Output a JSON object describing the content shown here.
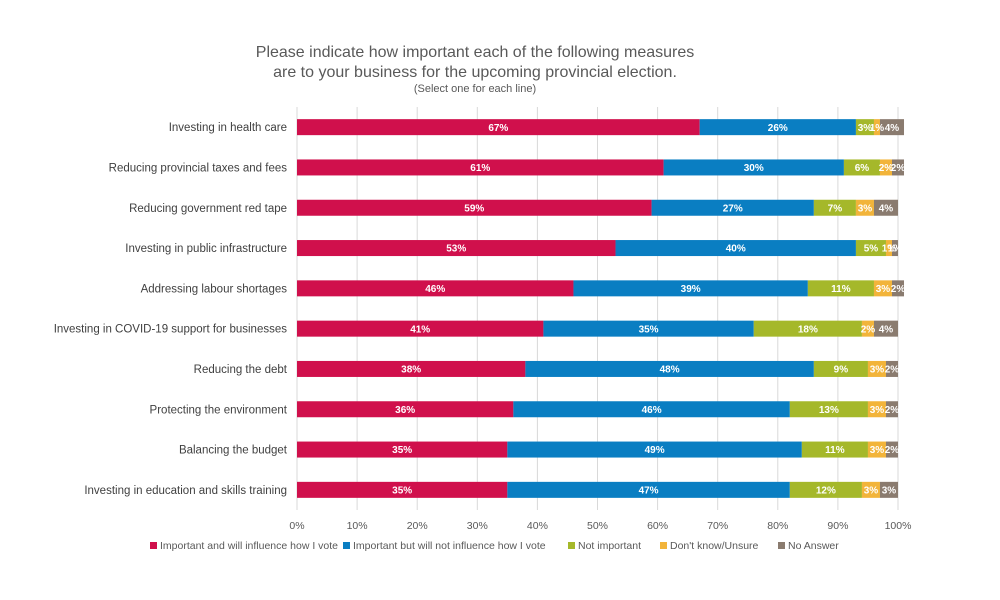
{
  "chart_data": {
    "type": "bar",
    "orientation": "horizontal",
    "stacked": true,
    "title_lines": [
      "Please indicate how important each of the following measures",
      "are to your business for the upcoming provincial election."
    ],
    "subtitle": "(Select one for each line)",
    "categories": [
      "Investing in health care",
      "Reducing provincial taxes and fees",
      "Reducing government red tape",
      "Investing in public infrastructure",
      "Addressing labour shortages",
      "Investing in COVID-19 support for businesses",
      "Reducing the debt",
      "Protecting the environment",
      "Balancing the budget",
      "Investing in education and skills training"
    ],
    "series": [
      {
        "name": "Important and will influence how I vote",
        "color": "#d0104c",
        "values": [
          67,
          61,
          59,
          53,
          46,
          41,
          38,
          36,
          35,
          35
        ]
      },
      {
        "name": "Important but will not influence how I vote",
        "color": "#0a7ec2",
        "values": [
          26,
          30,
          27,
          40,
          39,
          35,
          48,
          46,
          49,
          47
        ]
      },
      {
        "name": "Not important",
        "color": "#a5b82a",
        "values": [
          3,
          6,
          7,
          5,
          11,
          18,
          9,
          13,
          11,
          12
        ]
      },
      {
        "name": "Don't know/Unsure",
        "color": "#f2b43a",
        "values": [
          1,
          2,
          3,
          1,
          3,
          2,
          3,
          3,
          3,
          3
        ]
      },
      {
        "name": "No Answer",
        "color": "#8a7b6f",
        "values": [
          4,
          2,
          4,
          1,
          2,
          4,
          2,
          2,
          2,
          3
        ]
      }
    ],
    "data_labels": [
      [
        "67%",
        "26%",
        "3%",
        "1%",
        "4%"
      ],
      [
        "61%",
        "30%",
        "6%",
        "2%",
        "2%"
      ],
      [
        "59%",
        "27%",
        "7%",
        "3%",
        "4%"
      ],
      [
        "53%",
        "40%",
        "5%",
        "1%",
        "1%"
      ],
      [
        "46%",
        "39%",
        "11%",
        "3%",
        "2%"
      ],
      [
        "41%",
        "35%",
        "18%",
        "2%",
        "4%"
      ],
      [
        "38%",
        "48%",
        "9%",
        "3%",
        "2%"
      ],
      [
        "36%",
        "46%",
        "13%",
        "3%",
        "2%"
      ],
      [
        "35%",
        "49%",
        "11%",
        "3%",
        "2%"
      ],
      [
        "35%",
        "47%",
        "12%",
        "3%",
        "3%"
      ]
    ],
    "xlim": [
      0,
      100
    ],
    "x_ticks": [
      "0%",
      "10%",
      "20%",
      "30%",
      "40%",
      "50%",
      "60%",
      "70%",
      "80%",
      "90%",
      "100%"
    ],
    "grid": true,
    "legend_position": "bottom"
  }
}
